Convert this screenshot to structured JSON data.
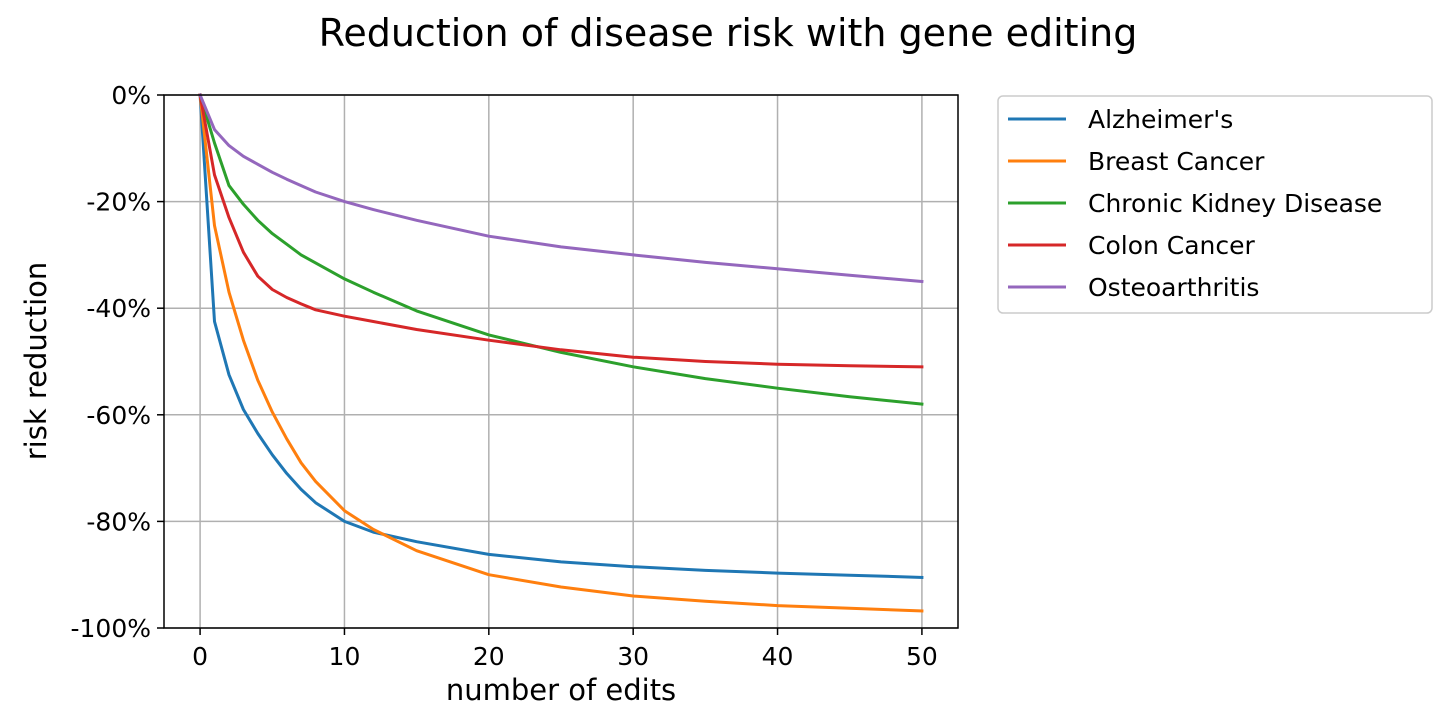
{
  "chart_data": {
    "type": "line",
    "title": "Reduction of disease risk with gene editing",
    "xlabel": "number of edits",
    "ylabel": "risk reduction",
    "xlim": [
      -2.5,
      52.5
    ],
    "ylim": [
      -100,
      0
    ],
    "x_ticks": [
      0,
      10,
      20,
      30,
      40,
      50
    ],
    "x_tick_labels": [
      "0",
      "10",
      "20",
      "30",
      "40",
      "50"
    ],
    "y_ticks": [
      0,
      -20,
      -40,
      -60,
      -80,
      -100
    ],
    "y_tick_labels": [
      "0%",
      "-20%",
      "-40%",
      "-60%",
      "-80%",
      "-100%"
    ],
    "grid": true,
    "legend": "outside-top-right",
    "x": [
      0,
      1,
      2,
      3,
      4,
      5,
      6,
      7,
      8,
      10,
      12,
      15,
      20,
      25,
      30,
      35,
      40,
      45,
      50
    ],
    "series": [
      {
        "name": "Alzheimer's",
        "color": "#1f77b4",
        "values": [
          0,
          -42.5,
          -52.5,
          -59,
          -63.5,
          -67.5,
          -71,
          -74,
          -76.5,
          -80,
          -82,
          -83.8,
          -86.2,
          -87.6,
          -88.5,
          -89.2,
          -89.7,
          -90.1,
          -90.5
        ]
      },
      {
        "name": "Breast Cancer",
        "color": "#ff7f0e",
        "values": [
          0,
          -24.5,
          -37,
          -46,
          -53.5,
          -59.5,
          -64.5,
          -69,
          -72.5,
          -78,
          -81.5,
          -85.5,
          -90,
          -92.3,
          -94,
          -95,
          -95.8,
          -96.3,
          -96.8
        ]
      },
      {
        "name": "Chronic Kidney Disease",
        "color": "#2ca02c",
        "values": [
          0,
          -9,
          -17,
          -20.5,
          -23.5,
          -26,
          -28,
          -30,
          -31.5,
          -34.5,
          -37,
          -40.5,
          -45,
          -48.3,
          -51,
          -53.2,
          -55,
          -56.6,
          -58
        ]
      },
      {
        "name": "Colon Cancer",
        "color": "#d62728",
        "values": [
          0,
          -15,
          -23,
          -29.5,
          -34,
          -36.5,
          -38,
          -39.2,
          -40.3,
          -41.5,
          -42.5,
          -44,
          -46,
          -47.8,
          -49.2,
          -50,
          -50.5,
          -50.8,
          -51
        ]
      },
      {
        "name": "Osteoarthritis",
        "color": "#9467bd",
        "values": [
          0,
          -6.5,
          -9.5,
          -11.5,
          -13,
          -14.5,
          -15.8,
          -17,
          -18.2,
          -20,
          -21.5,
          -23.5,
          -26.5,
          -28.5,
          -30,
          -31.4,
          -32.6,
          -33.8,
          -35
        ]
      }
    ]
  }
}
